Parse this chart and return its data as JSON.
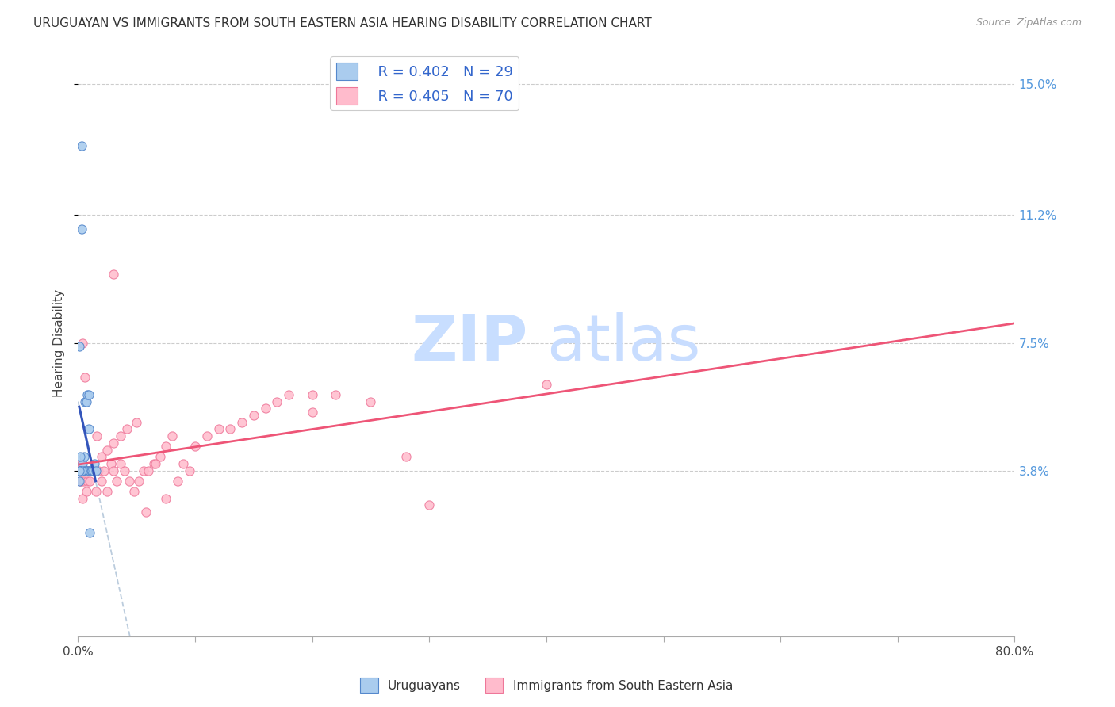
{
  "title": "URUGUAYAN VS IMMIGRANTS FROM SOUTH EASTERN ASIA HEARING DISABILITY CORRELATION CHART",
  "source": "Source: ZipAtlas.com",
  "ylabel": "Hearing Disability",
  "right_yticks": [
    0.038,
    0.075,
    0.112,
    0.15
  ],
  "right_yticklabels": [
    "3.8%",
    "7.5%",
    "11.2%",
    "15.0%"
  ],
  "xlim": [
    0.0,
    0.8
  ],
  "ylim": [
    -0.01,
    0.16
  ],
  "legend_r1": "R = 0.402",
  "legend_n1": "N = 29",
  "legend_r2": "R = 0.405",
  "legend_n2": "N = 70",
  "blue_scatter_color": "#AACCEE",
  "blue_edge_color": "#5588CC",
  "pink_scatter_color": "#FFBBCC",
  "pink_edge_color": "#EE7799",
  "blue_line_color": "#3355BB",
  "pink_line_color": "#EE5577",
  "dash_color": "#BBCCDD",
  "watermark_color": "#DDEEFF",
  "uruguayan_x": [
    0.003,
    0.003,
    0.004,
    0.004,
    0.005,
    0.005,
    0.006,
    0.006,
    0.007,
    0.007,
    0.008,
    0.008,
    0.009,
    0.009,
    0.01,
    0.01,
    0.011,
    0.012,
    0.013,
    0.014,
    0.002,
    0.002,
    0.002,
    0.003,
    0.001,
    0.001,
    0.001,
    0.015,
    0.01
  ],
  "uruguayan_y": [
    0.132,
    0.108,
    0.038,
    0.04,
    0.038,
    0.042,
    0.058,
    0.038,
    0.058,
    0.038,
    0.06,
    0.038,
    0.06,
    0.05,
    0.038,
    0.038,
    0.038,
    0.038,
    0.038,
    0.04,
    0.038,
    0.038,
    0.042,
    0.038,
    0.035,
    0.038,
    0.074,
    0.038,
    0.02
  ],
  "sea_x": [
    0.001,
    0.002,
    0.002,
    0.003,
    0.003,
    0.004,
    0.004,
    0.005,
    0.005,
    0.006,
    0.007,
    0.007,
    0.008,
    0.009,
    0.01,
    0.012,
    0.015,
    0.017,
    0.02,
    0.022,
    0.025,
    0.028,
    0.03,
    0.033,
    0.036,
    0.04,
    0.044,
    0.048,
    0.052,
    0.056,
    0.06,
    0.065,
    0.07,
    0.075,
    0.08,
    0.09,
    0.1,
    0.11,
    0.12,
    0.13,
    0.14,
    0.15,
    0.16,
    0.17,
    0.18,
    0.2,
    0.22,
    0.25,
    0.28,
    0.3,
    0.004,
    0.006,
    0.008,
    0.01,
    0.013,
    0.016,
    0.02,
    0.025,
    0.03,
    0.036,
    0.042,
    0.05,
    0.058,
    0.066,
    0.075,
    0.085,
    0.095,
    0.4,
    0.03,
    0.2
  ],
  "sea_y": [
    0.038,
    0.038,
    0.035,
    0.035,
    0.04,
    0.038,
    0.03,
    0.038,
    0.035,
    0.038,
    0.032,
    0.038,
    0.035,
    0.038,
    0.035,
    0.038,
    0.032,
    0.038,
    0.035,
    0.038,
    0.032,
    0.04,
    0.038,
    0.035,
    0.04,
    0.038,
    0.035,
    0.032,
    0.035,
    0.038,
    0.038,
    0.04,
    0.042,
    0.045,
    0.048,
    0.04,
    0.045,
    0.048,
    0.05,
    0.05,
    0.052,
    0.054,
    0.056,
    0.058,
    0.06,
    0.055,
    0.06,
    0.058,
    0.042,
    0.028,
    0.075,
    0.065,
    0.038,
    0.038,
    0.038,
    0.048,
    0.042,
    0.044,
    0.046,
    0.048,
    0.05,
    0.052,
    0.026,
    0.04,
    0.03,
    0.035,
    0.038,
    0.063,
    0.095,
    0.06
  ]
}
